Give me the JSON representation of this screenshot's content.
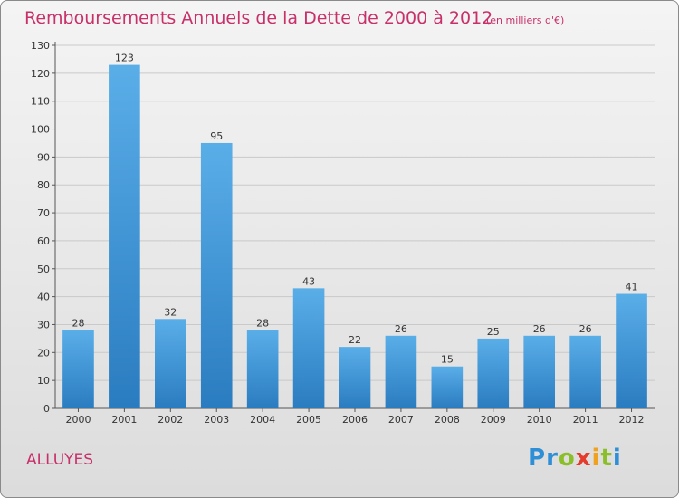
{
  "title": "Remboursements Annuels de la Dette de 2000 à 2012",
  "unit_note": "(en milliers d'€)",
  "commune": "ALLUYES",
  "logo": {
    "text": "Proxiti",
    "letters": [
      {
        "ch": "P",
        "color": "#2e8fd6"
      },
      {
        "ch": "r",
        "color": "#2e8fd6"
      },
      {
        "ch": "o",
        "color": "#8bbf2a"
      },
      {
        "ch": "x",
        "color": "#e53b2c"
      },
      {
        "ch": "i",
        "color": "#f0a21e"
      },
      {
        "ch": "t",
        "color": "#8bbf2a"
      },
      {
        "ch": "i",
        "color": "#2e8fd6"
      }
    ]
  },
  "chart_data": {
    "type": "bar",
    "categories": [
      "2000",
      "2001",
      "2002",
      "2003",
      "2004",
      "2005",
      "2006",
      "2007",
      "2008",
      "2009",
      "2010",
      "2011",
      "2012"
    ],
    "values": [
      28,
      123,
      32,
      95,
      28,
      43,
      22,
      26,
      15,
      25,
      26,
      26,
      41
    ],
    "ylim": [
      0,
      130
    ],
    "yticks": [
      0,
      10,
      20,
      30,
      40,
      50,
      60,
      70,
      80,
      90,
      100,
      110,
      120,
      130
    ],
    "grid": true,
    "bar_color_top": "#5aaee8",
    "bar_color_bottom": "#2a7cc0"
  }
}
